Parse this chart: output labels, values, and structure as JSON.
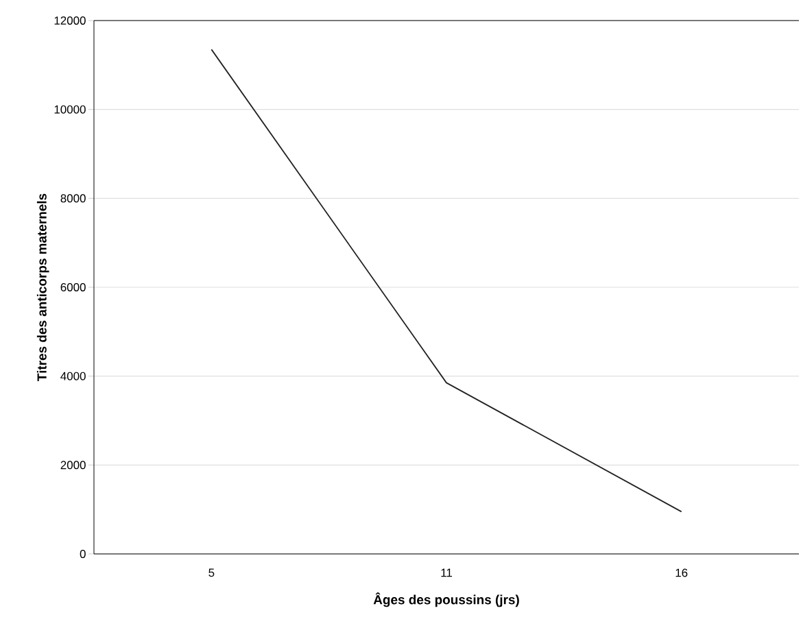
{
  "chart_data": {
    "type": "line",
    "xlabel": "Âges des poussins (jrs)",
    "ylabel": "Titres des anticorps maternels",
    "categories": [
      "5",
      "11",
      "16"
    ],
    "values": [
      11350,
      3850,
      950
    ],
    "color": "#222222",
    "ylim": [
      0,
      12000
    ],
    "yticks": [
      0,
      2000,
      4000,
      6000,
      8000,
      10000,
      12000
    ],
    "grid": "y",
    "marker": "none",
    "line_style": "solid"
  }
}
